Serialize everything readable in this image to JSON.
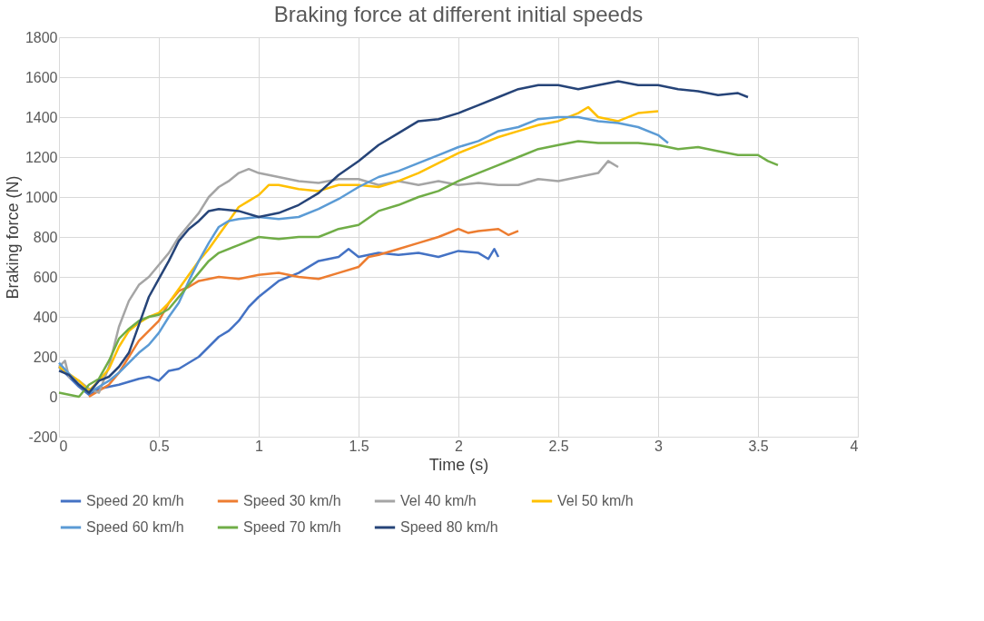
{
  "chart_data": {
    "type": "line",
    "title": "Braking force at different initial speeds",
    "xlabel": "Time (s)",
    "ylabel": "Braking force (N)",
    "xlim": [
      0,
      4
    ],
    "xticks": [
      0,
      0.5,
      1,
      1.5,
      2,
      2.5,
      3,
      3.5,
      4
    ],
    "ylim": [
      -200,
      1800
    ],
    "yticks": [
      -200,
      0,
      200,
      400,
      600,
      800,
      1000,
      1200,
      1400,
      1600,
      1800
    ],
    "grid": true,
    "legend": "bottom",
    "marker": "none",
    "line_style": "solid",
    "series": [
      {
        "name": "Speed 20 km/h",
        "color": "#4472c4",
        "x": [
          0,
          0.05,
          0.1,
          0.15,
          0.2,
          0.3,
          0.4,
          0.45,
          0.5,
          0.55,
          0.6,
          0.7,
          0.8,
          0.85,
          0.9,
          0.95,
          1.0,
          1.05,
          1.1,
          1.2,
          1.3,
          1.4,
          1.45,
          1.5,
          1.6,
          1.7,
          1.8,
          1.9,
          2.0,
          2.1,
          2.15,
          2.18,
          2.2
        ],
        "values": [
          150,
          100,
          50,
          10,
          40,
          60,
          90,
          100,
          80,
          130,
          140,
          200,
          300,
          330,
          380,
          450,
          500,
          540,
          580,
          620,
          680,
          700,
          740,
          700,
          720,
          710,
          720,
          700,
          730,
          720,
          690,
          740,
          700
        ]
      },
      {
        "name": "Speed 30 km/h",
        "color": "#ed7d31",
        "x": [
          0.15,
          0.2,
          0.25,
          0.3,
          0.35,
          0.4,
          0.45,
          0.5,
          0.55,
          0.6,
          0.65,
          0.7,
          0.8,
          0.9,
          1.0,
          1.1,
          1.2,
          1.3,
          1.4,
          1.5,
          1.55,
          1.6,
          1.7,
          1.8,
          1.9,
          2.0,
          2.05,
          2.1,
          2.2,
          2.25,
          2.3
        ],
        "values": [
          0,
          30,
          60,
          120,
          200,
          280,
          330,
          380,
          470,
          530,
          550,
          580,
          600,
          590,
          610,
          620,
          600,
          590,
          620,
          650,
          700,
          710,
          740,
          770,
          800,
          840,
          820,
          830,
          840,
          810,
          830
        ]
      },
      {
        "name": "Vel 40 km/h",
        "color": "#a5a5a5",
        "x": [
          0,
          0.03,
          0.05,
          0.1,
          0.15,
          0.2,
          0.25,
          0.3,
          0.35,
          0.4,
          0.45,
          0.5,
          0.55,
          0.6,
          0.65,
          0.7,
          0.75,
          0.8,
          0.85,
          0.9,
          0.95,
          1.0,
          1.1,
          1.2,
          1.3,
          1.4,
          1.5,
          1.6,
          1.7,
          1.8,
          1.9,
          2.0,
          2.1,
          2.2,
          2.3,
          2.4,
          2.5,
          2.6,
          2.7,
          2.75,
          2.8
        ],
        "values": [
          150,
          180,
          100,
          80,
          40,
          20,
          150,
          350,
          480,
          560,
          600,
          660,
          720,
          800,
          860,
          920,
          1000,
          1050,
          1080,
          1120,
          1140,
          1120,
          1100,
          1080,
          1070,
          1090,
          1090,
          1060,
          1080,
          1060,
          1080,
          1060,
          1070,
          1060,
          1060,
          1090,
          1080,
          1100,
          1120,
          1180,
          1150
        ]
      },
      {
        "name": "Vel 50 km/h",
        "color": "#ffc000",
        "x": [
          0,
          0.1,
          0.15,
          0.2,
          0.25,
          0.3,
          0.35,
          0.4,
          0.45,
          0.5,
          0.55,
          0.6,
          0.65,
          0.7,
          0.75,
          0.8,
          0.85,
          0.9,
          0.95,
          1.0,
          1.05,
          1.1,
          1.2,
          1.3,
          1.4,
          1.5,
          1.6,
          1.7,
          1.8,
          1.9,
          2.0,
          2.1,
          2.2,
          2.3,
          2.4,
          2.5,
          2.6,
          2.65,
          2.7,
          2.8,
          2.9,
          3.0
        ],
        "values": [
          150,
          80,
          30,
          80,
          140,
          250,
          330,
          370,
          400,
          420,
          470,
          540,
          610,
          680,
          740,
          810,
          880,
          950,
          980,
          1010,
          1060,
          1060,
          1040,
          1030,
          1060,
          1060,
          1050,
          1080,
          1120,
          1170,
          1220,
          1260,
          1300,
          1330,
          1360,
          1380,
          1420,
          1450,
          1400,
          1380,
          1420,
          1430
        ]
      },
      {
        "name": "Speed 60 km/h",
        "color": "#5b9bd5",
        "x": [
          0,
          0.1,
          0.15,
          0.2,
          0.25,
          0.3,
          0.35,
          0.4,
          0.45,
          0.5,
          0.55,
          0.6,
          0.65,
          0.7,
          0.75,
          0.8,
          0.85,
          0.9,
          1.0,
          1.1,
          1.2,
          1.3,
          1.4,
          1.5,
          1.6,
          1.7,
          1.8,
          1.9,
          2.0,
          2.1,
          2.2,
          2.3,
          2.4,
          2.5,
          2.6,
          2.7,
          2.8,
          2.9,
          3.0,
          3.05
        ],
        "values": [
          170,
          60,
          20,
          50,
          80,
          120,
          170,
          220,
          260,
          320,
          400,
          470,
          580,
          680,
          770,
          850,
          880,
          890,
          900,
          890,
          900,
          940,
          990,
          1050,
          1100,
          1130,
          1170,
          1210,
          1250,
          1280,
          1330,
          1350,
          1390,
          1400,
          1400,
          1380,
          1370,
          1350,
          1310,
          1270
        ]
      },
      {
        "name": "Speed 70 km/h",
        "color": "#70ad47",
        "x": [
          0,
          0.05,
          0.1,
          0.15,
          0.2,
          0.25,
          0.3,
          0.35,
          0.4,
          0.45,
          0.5,
          0.55,
          0.6,
          0.65,
          0.7,
          0.75,
          0.8,
          0.9,
          1.0,
          1.1,
          1.2,
          1.3,
          1.4,
          1.5,
          1.6,
          1.7,
          1.8,
          1.9,
          2.0,
          2.1,
          2.2,
          2.3,
          2.4,
          2.5,
          2.6,
          2.7,
          2.8,
          2.9,
          3.0,
          3.1,
          3.2,
          3.3,
          3.4,
          3.5,
          3.55,
          3.6
        ],
        "values": [
          20,
          10,
          0,
          60,
          90,
          180,
          290,
          340,
          380,
          400,
          410,
          440,
          500,
          560,
          620,
          680,
          720,
          760,
          800,
          790,
          800,
          800,
          840,
          860,
          930,
          960,
          1000,
          1030,
          1080,
          1120,
          1160,
          1200,
          1240,
          1260,
          1280,
          1270,
          1270,
          1270,
          1260,
          1240,
          1250,
          1230,
          1210,
          1210,
          1180,
          1160
        ]
      },
      {
        "name": "Speed 80 km/h",
        "color": "#264478",
        "x": [
          0,
          0.05,
          0.1,
          0.15,
          0.2,
          0.25,
          0.3,
          0.35,
          0.4,
          0.45,
          0.5,
          0.55,
          0.6,
          0.65,
          0.7,
          0.75,
          0.8,
          0.9,
          1.0,
          1.1,
          1.2,
          1.3,
          1.4,
          1.5,
          1.6,
          1.7,
          1.8,
          1.9,
          2.0,
          2.1,
          2.2,
          2.3,
          2.4,
          2.5,
          2.6,
          2.7,
          2.8,
          2.9,
          3.0,
          3.1,
          3.2,
          3.3,
          3.4,
          3.45
        ],
        "values": [
          130,
          110,
          60,
          20,
          80,
          100,
          150,
          220,
          360,
          500,
          590,
          680,
          780,
          840,
          880,
          930,
          940,
          930,
          900,
          920,
          960,
          1020,
          1110,
          1180,
          1260,
          1320,
          1380,
          1390,
          1420,
          1460,
          1500,
          1540,
          1560,
          1560,
          1540,
          1560,
          1580,
          1560,
          1560,
          1540,
          1530,
          1510,
          1520,
          1500
        ]
      }
    ]
  }
}
